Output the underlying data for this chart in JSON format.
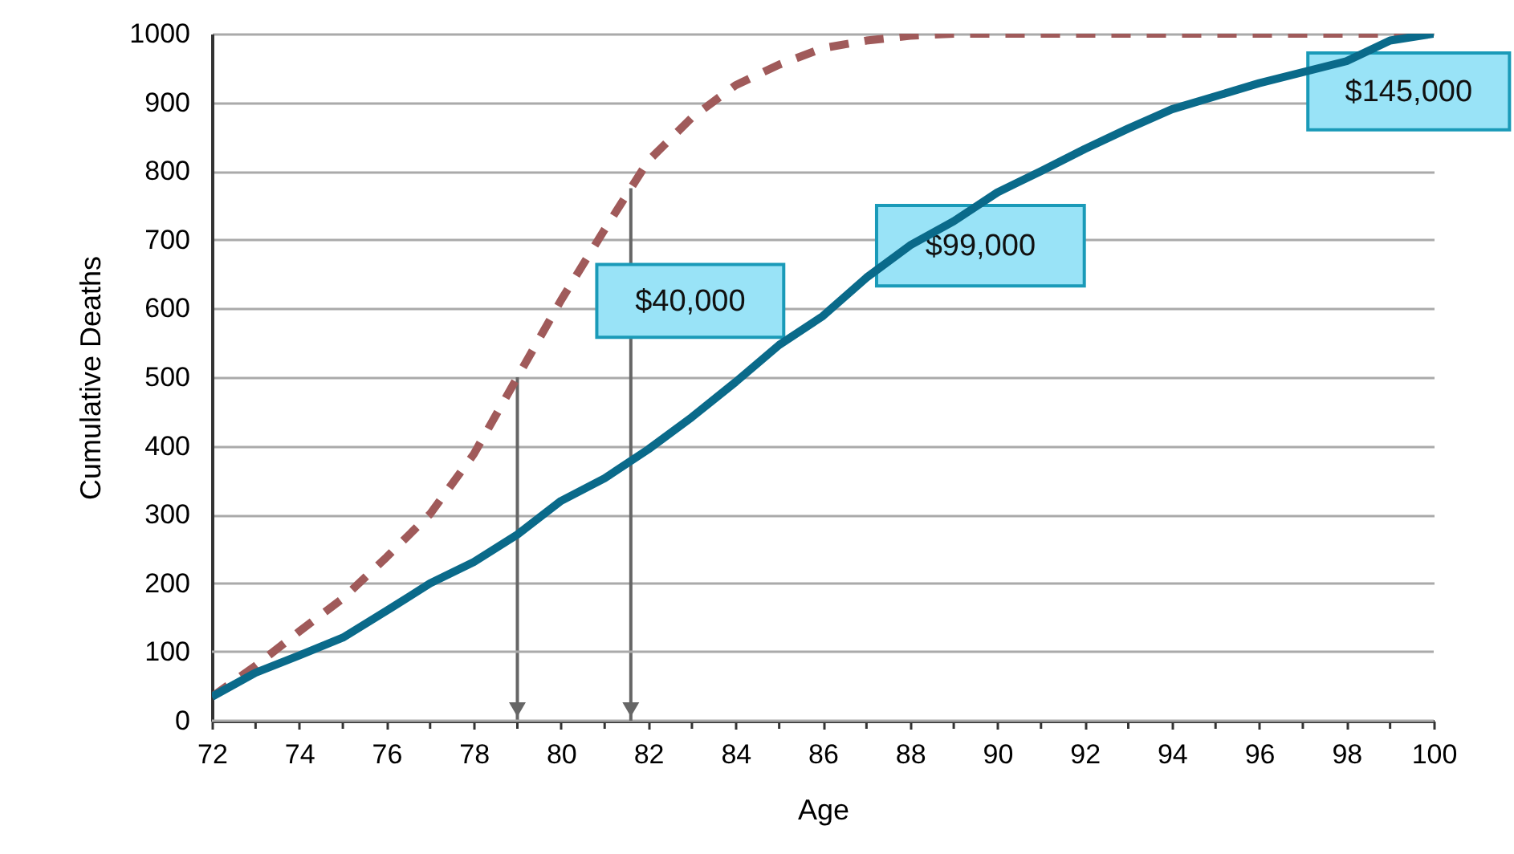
{
  "chart_data": {
    "type": "line",
    "xlabel": "Age",
    "ylabel": "Cumulative Deaths",
    "x": [
      72,
      73,
      74,
      75,
      76,
      77,
      78,
      79,
      80,
      81,
      82,
      83,
      84,
      85,
      86,
      87,
      88,
      89,
      90,
      91,
      92,
      93,
      94,
      96,
      98,
      99,
      100
    ],
    "series": [
      {
        "color": "#a05a5a",
        "line_style": "dashed",
        "values": [
          35,
          80,
          130,
          178,
          238,
          301,
          388,
          500,
          612,
          715,
          815,
          878,
          925,
          955,
          979,
          990,
          997,
          1000,
          1000,
          1000,
          1000,
          1000,
          1000,
          1000,
          1000,
          1000,
          1000
        ]
      },
      {
        "color": "#0a6a8a",
        "line_style": "solid",
        "values": [
          35,
          70,
          95,
          121,
          160,
          200,
          231,
          271,
          320,
          353,
          395,
          442,
          493,
          547,
          589,
          645,
          692,
          727,
          769,
          800,
          832,
          862,
          890,
          928,
          960,
          990,
          1000
        ]
      }
    ],
    "xlim": [
      72,
      100
    ],
    "xticks": [
      72,
      {
        "value": 73,
        "label": null
      },
      74,
      {
        "value": 75,
        "label": null
      },
      76,
      {
        "value": 77,
        "label": null
      },
      78,
      {
        "value": 79,
        "label": null
      },
      80,
      {
        "value": 81,
        "label": null
      },
      82,
      {
        "value": 83,
        "label": null
      },
      84,
      {
        "value": 85,
        "label": null
      },
      86,
      {
        "value": 87,
        "label": null
      },
      88,
      {
        "value": 89,
        "label": null
      },
      90,
      {
        "value": 91,
        "label": null
      },
      92,
      {
        "value": 93,
        "label": null
      },
      94,
      {
        "value": 95,
        "label": null
      },
      96,
      {
        "value": 97,
        "label": null
      },
      98,
      {
        "value": 99,
        "label": null
      },
      100
    ],
    "ylim": [
      0,
      1000
    ],
    "yticks": [
      0,
      100,
      200,
      300,
      400,
      500,
      600,
      700,
      800,
      900,
      1000
    ],
    "grid": "y",
    "ref_lines": [
      {
        "axis": "x",
        "value": 79,
        "color": "#666666"
      },
      {
        "axis": "x",
        "value": 81.6,
        "color": "#666666"
      }
    ],
    "annotations": [
      "$40,000",
      "$99,000",
      "$145,000"
    ]
  }
}
